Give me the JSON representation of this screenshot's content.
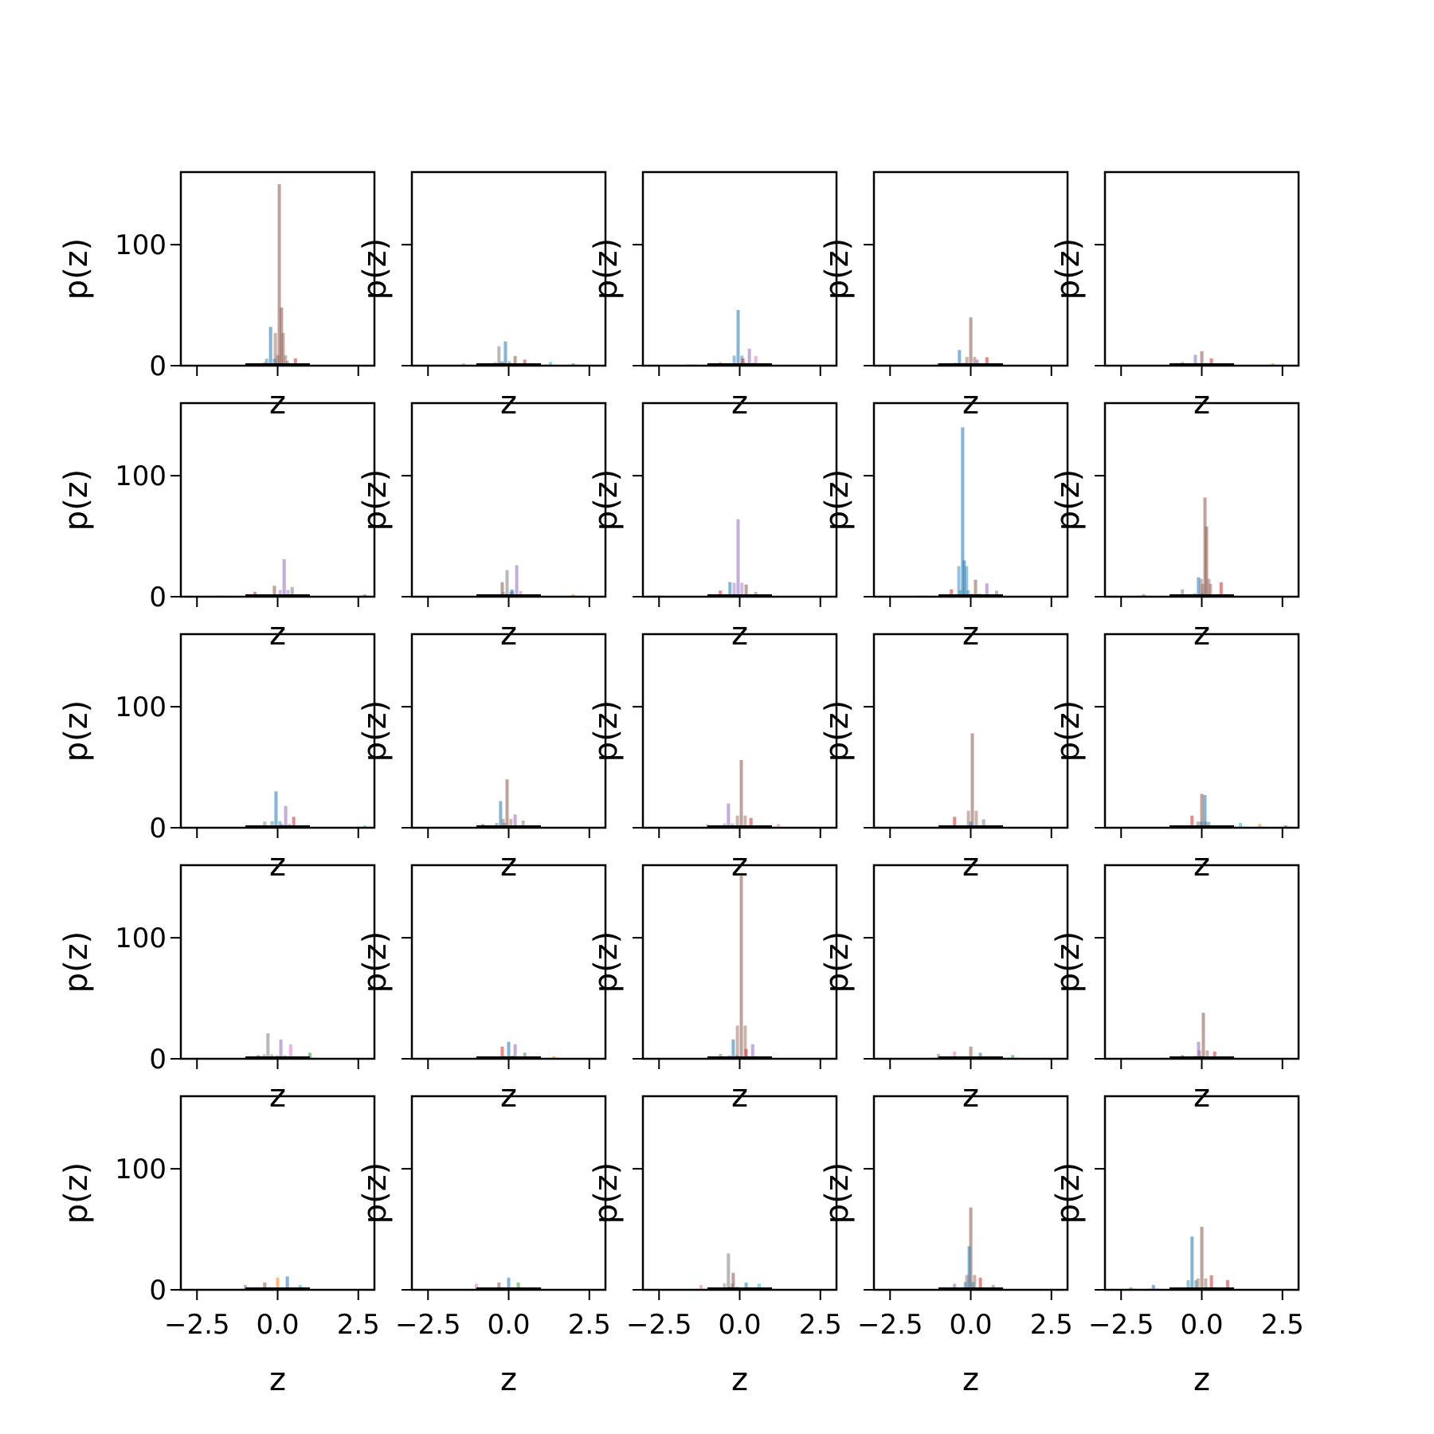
{
  "figure": {
    "rows": 5,
    "cols": 5,
    "sharex": true,
    "sharey": true
  },
  "chart_data": {
    "type": "histogram-grid",
    "xlabel": "z",
    "ylabel": "p(z)",
    "xlim": [
      -3.0,
      3.0
    ],
    "ylim": [
      0,
      160
    ],
    "xticks": [
      -2.5,
      0.0,
      2.5
    ],
    "xtick_labels": [
      "−2.5",
      "0.0",
      "2.5"
    ],
    "yticks": [
      0,
      100
    ],
    "ytick_labels": [
      "0",
      "100"
    ],
    "series_colors": [
      "#1f77b4",
      "#ff7f0e",
      "#2ca02c",
      "#d62728",
      "#9467bd",
      "#8c564b",
      "#e377c2",
      "#7f7f7f",
      "#bcbd22",
      "#17becf"
    ],
    "baseline_segment": {
      "x0": -1.0,
      "x1": 1.0,
      "y": 1,
      "color": "#000000"
    },
    "panels": [
      {
        "peaks": [
          {
            "x": 0.05,
            "h": 150,
            "c": 5
          },
          {
            "x": -0.22,
            "h": 32,
            "c": 0
          },
          {
            "x": 0.12,
            "h": 48,
            "c": 5
          },
          {
            "x": 0.55,
            "h": 6,
            "c": 3
          },
          {
            "x": -0.4,
            "h": 3,
            "c": 1
          },
          {
            "x": 0.3,
            "h": 4,
            "c": 7
          }
        ]
      },
      {
        "peaks": [
          {
            "x": -0.1,
            "h": 20,
            "c": 0
          },
          {
            "x": -0.3,
            "h": 16,
            "c": 7
          },
          {
            "x": 0.2,
            "h": 8,
            "c": 5
          },
          {
            "x": 0.5,
            "h": 5,
            "c": 3
          },
          {
            "x": 1.3,
            "h": 3,
            "c": 9
          },
          {
            "x": -1.4,
            "h": 2,
            "c": 6
          },
          {
            "x": 2.0,
            "h": 2,
            "c": 2
          }
        ]
      },
      {
        "peaks": [
          {
            "x": -0.05,
            "h": 46,
            "c": 0
          },
          {
            "x": 0.3,
            "h": 14,
            "c": 4
          },
          {
            "x": 0.5,
            "h": 8,
            "c": 6
          },
          {
            "x": 0.1,
            "h": 6,
            "c": 3
          },
          {
            "x": -0.6,
            "h": 3,
            "c": 1
          },
          {
            "x": -1.5,
            "h": 1,
            "c": 2
          }
        ]
      },
      {
        "peaks": [
          {
            "x": 0.0,
            "h": 40,
            "c": 5
          },
          {
            "x": -0.35,
            "h": 13,
            "c": 0
          },
          {
            "x": 0.5,
            "h": 7,
            "c": 3
          },
          {
            "x": 0.2,
            "h": 5,
            "c": 4
          },
          {
            "x": -1.0,
            "h": 2,
            "c": 2
          }
        ]
      },
      {
        "peaks": [
          {
            "x": 0.0,
            "h": 12,
            "c": 5
          },
          {
            "x": -0.2,
            "h": 9,
            "c": 4
          },
          {
            "x": 0.3,
            "h": 6,
            "c": 3
          },
          {
            "x": 2.2,
            "h": 2,
            "c": 1
          },
          {
            "x": -0.6,
            "h": 3,
            "c": 7
          }
        ]
      },
      {
        "peaks": [
          {
            "x": 0.2,
            "h": 31,
            "c": 4
          },
          {
            "x": -0.1,
            "h": 9,
            "c": 5
          },
          {
            "x": 0.45,
            "h": 8,
            "c": 7
          },
          {
            "x": -0.7,
            "h": 4,
            "c": 3
          },
          {
            "x": 2.7,
            "h": 2,
            "c": 2
          },
          {
            "x": -1.8,
            "h": 1,
            "c": 9
          }
        ]
      },
      {
        "peaks": [
          {
            "x": -0.05,
            "h": 22,
            "c": 7
          },
          {
            "x": 0.25,
            "h": 26,
            "c": 4
          },
          {
            "x": -0.2,
            "h": 12,
            "c": 5
          },
          {
            "x": 0.1,
            "h": 6,
            "c": 0
          },
          {
            "x": 2.0,
            "h": 2,
            "c": 1
          }
        ]
      },
      {
        "peaks": [
          {
            "x": -0.05,
            "h": 64,
            "c": 4
          },
          {
            "x": -0.3,
            "h": 12,
            "c": 0
          },
          {
            "x": 0.2,
            "h": 10,
            "c": 5
          },
          {
            "x": -0.6,
            "h": 5,
            "c": 3
          },
          {
            "x": -2.5,
            "h": 1,
            "c": 0
          },
          {
            "x": 0.5,
            "h": 4,
            "c": 7
          }
        ]
      },
      {
        "peaks": [
          {
            "x": -0.25,
            "h": 140,
            "c": 0
          },
          {
            "x": -0.2,
            "h": 30,
            "c": 0
          },
          {
            "x": 0.15,
            "h": 14,
            "c": 5
          },
          {
            "x": 0.5,
            "h": 11,
            "c": 4
          },
          {
            "x": -0.6,
            "h": 6,
            "c": 3
          },
          {
            "x": 0.8,
            "h": 5,
            "c": 7
          },
          {
            "x": -1.5,
            "h": 1,
            "c": 2
          }
        ]
      },
      {
        "peaks": [
          {
            "x": 0.1,
            "h": 82,
            "c": 5
          },
          {
            "x": 0.15,
            "h": 58,
            "c": 5
          },
          {
            "x": -0.1,
            "h": 16,
            "c": 0
          },
          {
            "x": 0.6,
            "h": 12,
            "c": 3
          },
          {
            "x": -0.6,
            "h": 6,
            "c": 7
          },
          {
            "x": -1.8,
            "h": 2,
            "c": 2
          }
        ]
      },
      {
        "peaks": [
          {
            "x": -0.05,
            "h": 30,
            "c": 0
          },
          {
            "x": 0.25,
            "h": 18,
            "c": 4
          },
          {
            "x": 0.5,
            "h": 9,
            "c": 3
          },
          {
            "x": -0.4,
            "h": 5,
            "c": 7
          },
          {
            "x": 2.7,
            "h": 2,
            "c": 9
          }
        ]
      },
      {
        "peaks": [
          {
            "x": -0.05,
            "h": 40,
            "c": 5
          },
          {
            "x": -0.25,
            "h": 22,
            "c": 0
          },
          {
            "x": 0.2,
            "h": 11,
            "c": 4
          },
          {
            "x": 0.45,
            "h": 6,
            "c": 7
          },
          {
            "x": -0.8,
            "h": 3,
            "c": 3
          }
        ]
      },
      {
        "peaks": [
          {
            "x": 0.05,
            "h": 56,
            "c": 5
          },
          {
            "x": -0.35,
            "h": 20,
            "c": 4
          },
          {
            "x": 0.35,
            "h": 8,
            "c": 3
          },
          {
            "x": -1.0,
            "h": 3,
            "c": 1
          },
          {
            "x": 1.2,
            "h": 3,
            "c": 6
          }
        ]
      },
      {
        "peaks": [
          {
            "x": 0.05,
            "h": 78,
            "c": 5
          },
          {
            "x": -0.5,
            "h": 9,
            "c": 3
          },
          {
            "x": 0.4,
            "h": 7,
            "c": 7
          },
          {
            "x": 0.0,
            "h": 5,
            "c": 0
          }
        ]
      },
      {
        "peaks": [
          {
            "x": 0.0,
            "h": 28,
            "c": 5
          },
          {
            "x": 0.1,
            "h": 27,
            "c": 0
          },
          {
            "x": -0.3,
            "h": 10,
            "c": 3
          },
          {
            "x": 1.2,
            "h": 4,
            "c": 9
          },
          {
            "x": 1.8,
            "h": 3,
            "c": 1
          },
          {
            "x": 2.6,
            "h": 2,
            "c": 0
          }
        ]
      },
      {
        "peaks": [
          {
            "x": -0.3,
            "h": 21,
            "c": 7
          },
          {
            "x": 0.1,
            "h": 16,
            "c": 4
          },
          {
            "x": 0.4,
            "h": 12,
            "c": 6
          },
          {
            "x": 1.0,
            "h": 5,
            "c": 2
          },
          {
            "x": -0.6,
            "h": 3,
            "c": 3
          }
        ]
      },
      {
        "peaks": [
          {
            "x": 0.0,
            "h": 14,
            "c": 0
          },
          {
            "x": 0.2,
            "h": 12,
            "c": 4
          },
          {
            "x": -0.2,
            "h": 10,
            "c": 3
          },
          {
            "x": 0.5,
            "h": 5,
            "c": 2
          },
          {
            "x": 1.4,
            "h": 2,
            "c": 1
          }
        ]
      },
      {
        "peaks": [
          {
            "x": 0.05,
            "h": 152,
            "c": 5
          },
          {
            "x": -0.2,
            "h": 16,
            "c": 0
          },
          {
            "x": 0.4,
            "h": 12,
            "c": 4
          },
          {
            "x": 0.2,
            "h": 8,
            "c": 3
          },
          {
            "x": -0.6,
            "h": 4,
            "c": 7
          }
        ]
      },
      {
        "peaks": [
          {
            "x": 0.0,
            "h": 10,
            "c": 5
          },
          {
            "x": -0.5,
            "h": 6,
            "c": 6
          },
          {
            "x": 0.3,
            "h": 5,
            "c": 0
          },
          {
            "x": 1.3,
            "h": 3,
            "c": 2
          },
          {
            "x": -1.0,
            "h": 4,
            "c": 4
          }
        ]
      },
      {
        "peaks": [
          {
            "x": 0.05,
            "h": 38,
            "c": 5
          },
          {
            "x": -0.1,
            "h": 14,
            "c": 4
          },
          {
            "x": 0.4,
            "h": 6,
            "c": 3
          },
          {
            "x": -0.6,
            "h": 3,
            "c": 0
          }
        ]
      },
      {
        "peaks": [
          {
            "x": 0.0,
            "h": 10,
            "c": 1
          },
          {
            "x": 0.3,
            "h": 11,
            "c": 0
          },
          {
            "x": -0.4,
            "h": 6,
            "c": 5
          },
          {
            "x": -1.0,
            "h": 4,
            "c": 4
          },
          {
            "x": 0.7,
            "h": 4,
            "c": 9
          }
        ]
      },
      {
        "peaks": [
          {
            "x": 0.0,
            "h": 10,
            "c": 0
          },
          {
            "x": 0.3,
            "h": 6,
            "c": 2
          },
          {
            "x": -1.0,
            "h": 5,
            "c": 6
          },
          {
            "x": -0.3,
            "h": 6,
            "c": 5
          }
        ]
      },
      {
        "peaks": [
          {
            "x": -0.35,
            "h": 30,
            "c": 7
          },
          {
            "x": -0.2,
            "h": 14,
            "c": 5
          },
          {
            "x": 0.2,
            "h": 6,
            "c": 0
          },
          {
            "x": -1.2,
            "h": 4,
            "c": 6
          },
          {
            "x": 0.6,
            "h": 5,
            "c": 9
          }
        ]
      },
      {
        "peaks": [
          {
            "x": 0.0,
            "h": 68,
            "c": 5
          },
          {
            "x": -0.05,
            "h": 36,
            "c": 0
          },
          {
            "x": 0.3,
            "h": 10,
            "c": 3
          },
          {
            "x": -0.5,
            "h": 5,
            "c": 4
          },
          {
            "x": 0.7,
            "h": 4,
            "c": 7
          }
        ]
      },
      {
        "peaks": [
          {
            "x": -0.3,
            "h": 44,
            "c": 0
          },
          {
            "x": 0.0,
            "h": 52,
            "c": 5
          },
          {
            "x": 0.3,
            "h": 12,
            "c": 3
          },
          {
            "x": -1.5,
            "h": 4,
            "c": 0
          },
          {
            "x": 0.8,
            "h": 8,
            "c": 3
          },
          {
            "x": -2.2,
            "h": 2,
            "c": 2
          }
        ]
      }
    ]
  }
}
